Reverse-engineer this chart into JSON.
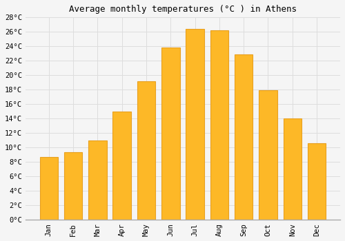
{
  "title": "Average monthly temperatures (°C ) in Athens",
  "months": [
    "Jan",
    "Feb",
    "Mar",
    "Apr",
    "May",
    "Jun",
    "Jul",
    "Aug",
    "Sep",
    "Oct",
    "Nov",
    "Dec"
  ],
  "values": [
    8.7,
    9.4,
    11.0,
    15.0,
    19.2,
    23.8,
    26.4,
    26.2,
    22.9,
    17.9,
    14.0,
    10.6
  ],
  "bar_color": "#FDB827",
  "bar_edge_color": "#E8A020",
  "ylim": [
    0,
    28
  ],
  "ytick_step": 2,
  "background_color": "#f5f5f5",
  "plot_bg_color": "#f5f5f5",
  "grid_color": "#dddddd",
  "title_fontsize": 9,
  "tick_fontsize": 7.5,
  "font_family": "monospace"
}
